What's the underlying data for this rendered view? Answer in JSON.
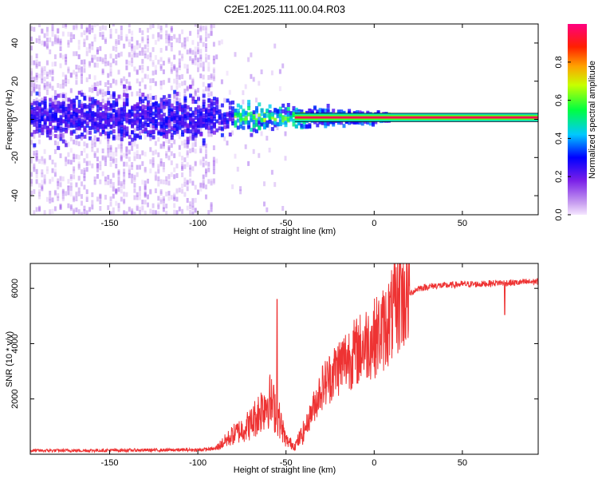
{
  "title": "C2E1.2025.111.00.04.R03",
  "chart_data": [
    {
      "type": "heatmap",
      "title": "C2E1.2025.111.00.04.R03",
      "xlabel": "Height of straight line (km)",
      "ylabel": "Frequency (Hz)",
      "xlim": [
        -195,
        93
      ],
      "ylim": [
        -50,
        50
      ],
      "xticks": [
        -150,
        -100,
        -50,
        0,
        50
      ],
      "yticks": [
        -40,
        -20,
        0,
        20,
        40
      ],
      "colorbar": {
        "label": "Normalized spectral amplitude",
        "range": [
          0,
          1
        ],
        "ticks": [
          "0.0",
          "0.2",
          "0.4",
          "0.6",
          "0.8"
        ],
        "colors": [
          "#f5e6ff",
          "#8a2be2",
          "#0000ff",
          "#00e5ff",
          "#00ff00",
          "#ffff00",
          "#ff8000",
          "#ff0000",
          "#ff0080"
        ]
      },
      "features": {
        "noise_band_x": [
          -195,
          -90
        ],
        "main_tone_frequency": 1,
        "clean_tone_from_x": 8
      }
    },
    {
      "type": "line",
      "xlabel": "Height of straight line (km)",
      "ylabel": "SNR (10 * v/v)",
      "xlim": [
        -195,
        93
      ],
      "ylim": [
        0,
        6900
      ],
      "xticks": [
        -150,
        -100,
        -50,
        0,
        50
      ],
      "yticks": [
        2000,
        4000,
        6000
      ],
      "color": "#ee3333",
      "series": [
        {
          "name": "SNR",
          "x": [
            -195,
            -150,
            -100,
            -90,
            -80,
            -70,
            -60,
            -55,
            -50,
            -45,
            -40,
            -35,
            -30,
            -25,
            -20,
            -15,
            -10,
            -5,
            0,
            5,
            10,
            15,
            20,
            25,
            30,
            35,
            40,
            50,
            60,
            70,
            80,
            93
          ],
          "y": [
            130,
            140,
            160,
            200,
            700,
            1100,
            2000,
            1500,
            500,
            300,
            800,
            1600,
            2400,
            2800,
            3200,
            3500,
            3700,
            4000,
            4200,
            4500,
            5000,
            5600,
            5800,
            6000,
            6050,
            6100,
            6100,
            6150,
            6150,
            6200,
            6200,
            6250
          ]
        }
      ],
      "annotations": {
        "spike_peak_x": 15,
        "spike_peak_y": 6900,
        "spike2_x": -55,
        "spike2_y": 5600
      }
    }
  ]
}
